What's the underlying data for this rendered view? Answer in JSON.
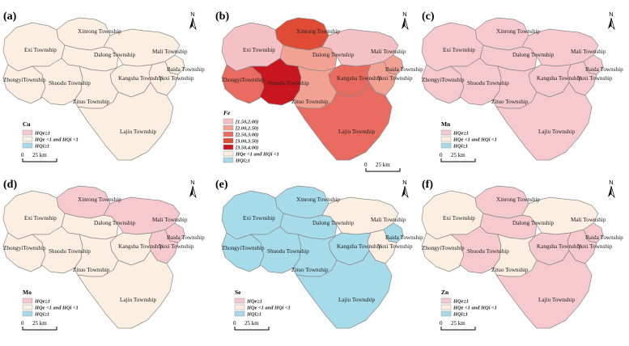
{
  "legend_labels": {
    "hq_high": "HQe≥1",
    "hq_mid": "HQe <1 and HQi <1",
    "hq_low": "HQi≥1"
  },
  "fe_classes": [
    "[1.50,2.00)",
    "[2.00,2.50)",
    "[2.50,3.00)",
    "[3.00,3.50)",
    "[3.50,4.00)"
  ],
  "scale": {
    "zero": "0",
    "dist": "25 km"
  },
  "north": "N",
  "colors": {
    "beige": "#fcefe2",
    "pink": "#f6c9cf",
    "blue": "#a6dbe9",
    "border": "#8a8a8a",
    "fe1": "#f4c2c4",
    "fe2": "#f2a193",
    "fe3": "#e96a5e",
    "fe4": "#e04b36",
    "fe5": "#c8151e"
  },
  "townships": [
    {
      "id": "xinrong",
      "name": "Xinrong Township"
    },
    {
      "id": "exi",
      "name": "Exi Township"
    },
    {
      "id": "dalong",
      "name": "Dalong Township"
    },
    {
      "id": "mali",
      "name": "Mali Township"
    },
    {
      "id": "baida",
      "name": "Baida Township"
    },
    {
      "id": "yuxi",
      "name": "Yuxi Township"
    },
    {
      "id": "kangsha",
      "name": "Kangsha Township"
    },
    {
      "id": "zhongyi",
      "name": "ZhongyiTownship"
    },
    {
      "id": "shuodu",
      "name": "Shuodu Township"
    },
    {
      "id": "zituo",
      "name": "Zituo Township"
    },
    {
      "id": "lajiu",
      "name": "Lajiu Township"
    }
  ],
  "panels": [
    {
      "id": "a",
      "label": "(a)",
      "element": "Cu",
      "legend": "hq",
      "fills": {
        "xinrong": "beige",
        "exi": "beige",
        "dalong": "beige",
        "mali": "beige",
        "baida": "beige",
        "yuxi": "beige",
        "kangsha": "beige",
        "zhongyi": "beige",
        "shuodu": "beige",
        "zituo": "beige",
        "lajiu": "beige"
      }
    },
    {
      "id": "b",
      "label": "(b)",
      "element": "Fe",
      "legend": "fe",
      "fills": {
        "xinrong": "fe4",
        "exi": "fe1",
        "dalong": "fe2",
        "mali": "fe1",
        "baida": "fe2",
        "yuxi": "fe2",
        "kangsha": "fe3",
        "zhongyi": "fe3",
        "shuodu": "fe5",
        "zituo": "fe2",
        "lajiu": "fe3"
      }
    },
    {
      "id": "c",
      "label": "(c)",
      "element": "Mn",
      "legend": "hq",
      "fills": {
        "xinrong": "pink",
        "exi": "pink",
        "dalong": "pink",
        "mali": "pink",
        "baida": "pink",
        "yuxi": "pink",
        "kangsha": "pink",
        "zhongyi": "pink",
        "shuodu": "pink",
        "zituo": "pink",
        "lajiu": "pink"
      }
    },
    {
      "id": "d",
      "label": "(d)",
      "element": "Mo",
      "legend": "hq",
      "fills": {
        "xinrong": "pink",
        "exi": "beige",
        "dalong": "beige",
        "mali": "pink",
        "baida": "pink",
        "yuxi": "pink",
        "kangsha": "beige",
        "zhongyi": "beige",
        "shuodu": "beige",
        "zituo": "beige",
        "lajiu": "beige"
      }
    },
    {
      "id": "e",
      "label": "(e)",
      "element": "Se",
      "legend": "hq",
      "fills": {
        "xinrong": "blue",
        "exi": "blue",
        "dalong": "blue",
        "mali": "beige",
        "baida": "blue",
        "yuxi": "beige",
        "kangsha": "blue",
        "zhongyi": "blue",
        "shuodu": "blue",
        "zituo": "blue",
        "lajiu": "blue"
      }
    },
    {
      "id": "f",
      "label": "(f)",
      "element": "Zn",
      "legend": "hq",
      "fills": {
        "xinrong": "pink",
        "exi": "beige",
        "dalong": "pink",
        "mali": "beige",
        "baida": "pink",
        "yuxi": "pink",
        "kangsha": "pink",
        "zhongyi": "beige",
        "shuodu": "pink",
        "zituo": "beige",
        "lajiu": "pink"
      }
    }
  ]
}
